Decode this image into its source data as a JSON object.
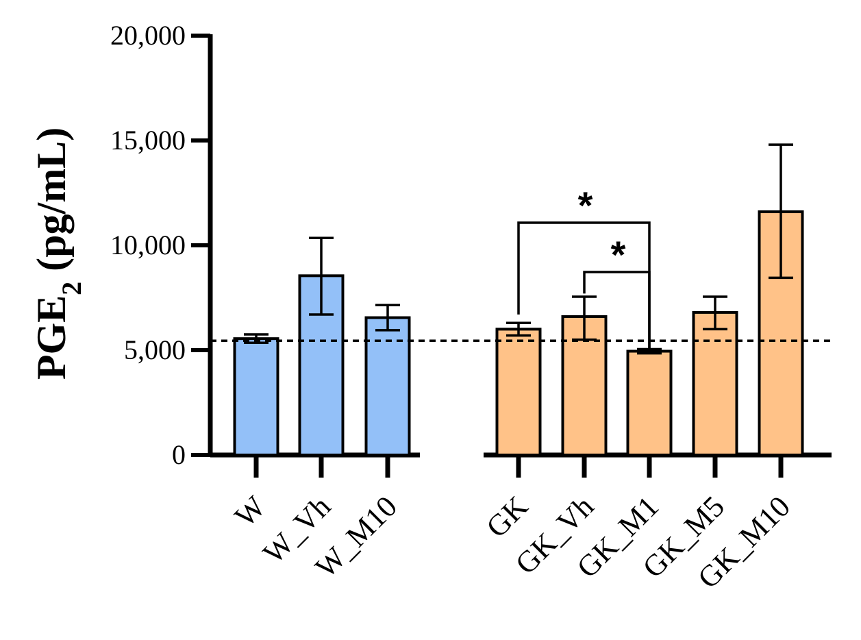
{
  "chart_data": {
    "type": "bar",
    "ylabel_main": "PGE",
    "ylabel_sub": "2",
    "ylabel_tail": " (pg/mL)",
    "ylim": [
      0,
      20000
    ],
    "yticks": [
      0,
      5000,
      10000,
      15000,
      20000
    ],
    "ytick_labels": [
      "0",
      "5,000",
      "10,000",
      "15,000",
      "20,000"
    ],
    "baseline_value": 5450,
    "groups": [
      {
        "name": "W",
        "color": "#93C0F8",
        "bars": [
          {
            "label": "W",
            "value": 5550,
            "err_low": 5350,
            "err_high": 5750
          },
          {
            "label": "W_Vh",
            "value": 8550,
            "err_low": 6700,
            "err_high": 10350
          },
          {
            "label": "W_M10",
            "value": 6550,
            "err_low": 5950,
            "err_high": 7150
          }
        ]
      },
      {
        "name": "GK",
        "color": "#FFC288",
        "bars": [
          {
            "label": "GK",
            "value": 6000,
            "err_low": 5700,
            "err_high": 6300
          },
          {
            "label": "GK_Vh",
            "value": 6600,
            "err_low": 5500,
            "err_high": 7550
          },
          {
            "label": "GK_M1",
            "value": 4950,
            "err_low": 4850,
            "err_high": 5050
          },
          {
            "label": "GK_M5",
            "value": 6800,
            "err_low": 6000,
            "err_high": 7550
          },
          {
            "label": "GK_M10",
            "value": 11600,
            "err_low": 8450,
            "err_high": 14800
          }
        ]
      }
    ],
    "significance": [
      {
        "from": "GK",
        "to": "GK_M1",
        "label": "*"
      },
      {
        "from": "GK_Vh",
        "to": "GK_M1",
        "label": "*"
      }
    ]
  }
}
